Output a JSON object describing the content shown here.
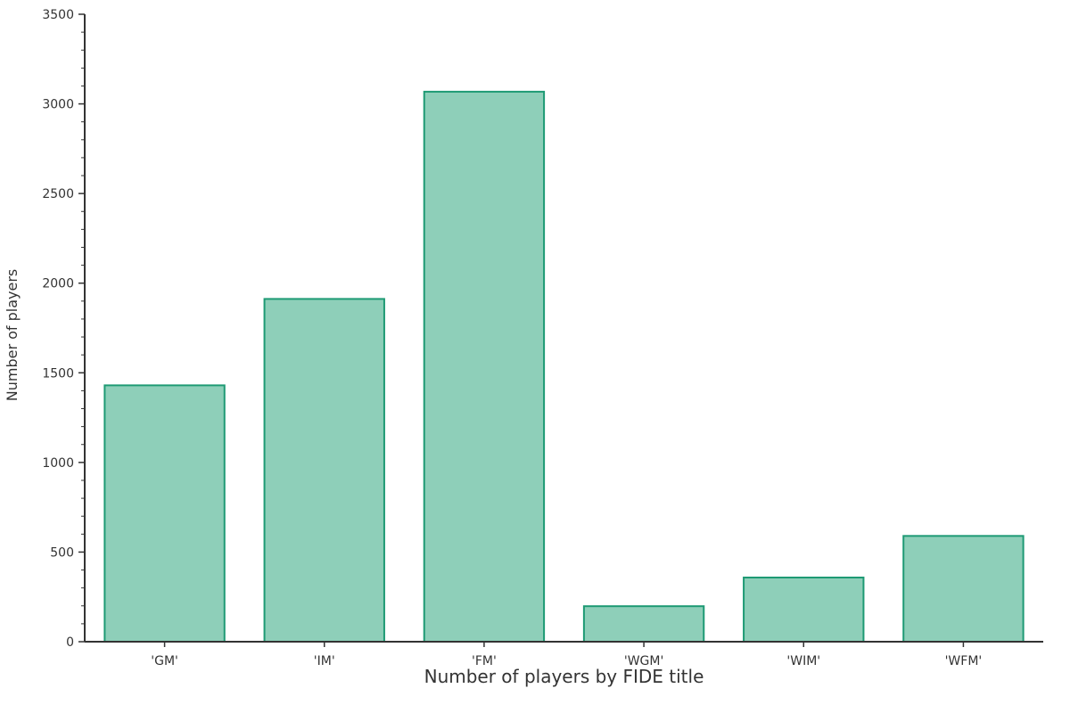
{
  "chart_data": {
    "type": "bar",
    "title": "",
    "xlabel": "Number of players by FIDE title",
    "ylabel": "Number of players",
    "categories": [
      "'GM'",
      "'IM'",
      "'FM'",
      "'WGM'",
      "'WIM'",
      "'WFM'"
    ],
    "values": [
      1430,
      1912,
      3068,
      198,
      358,
      590
    ],
    "ylim": [
      0,
      3500
    ],
    "yticks": [
      0,
      500,
      1000,
      1500,
      2000,
      2500,
      3000,
      3500
    ],
    "grid": false,
    "colors": {
      "bar_fill": "#8ecfb9",
      "bar_stroke": "#1e9a74",
      "axis": "#333333"
    }
  }
}
